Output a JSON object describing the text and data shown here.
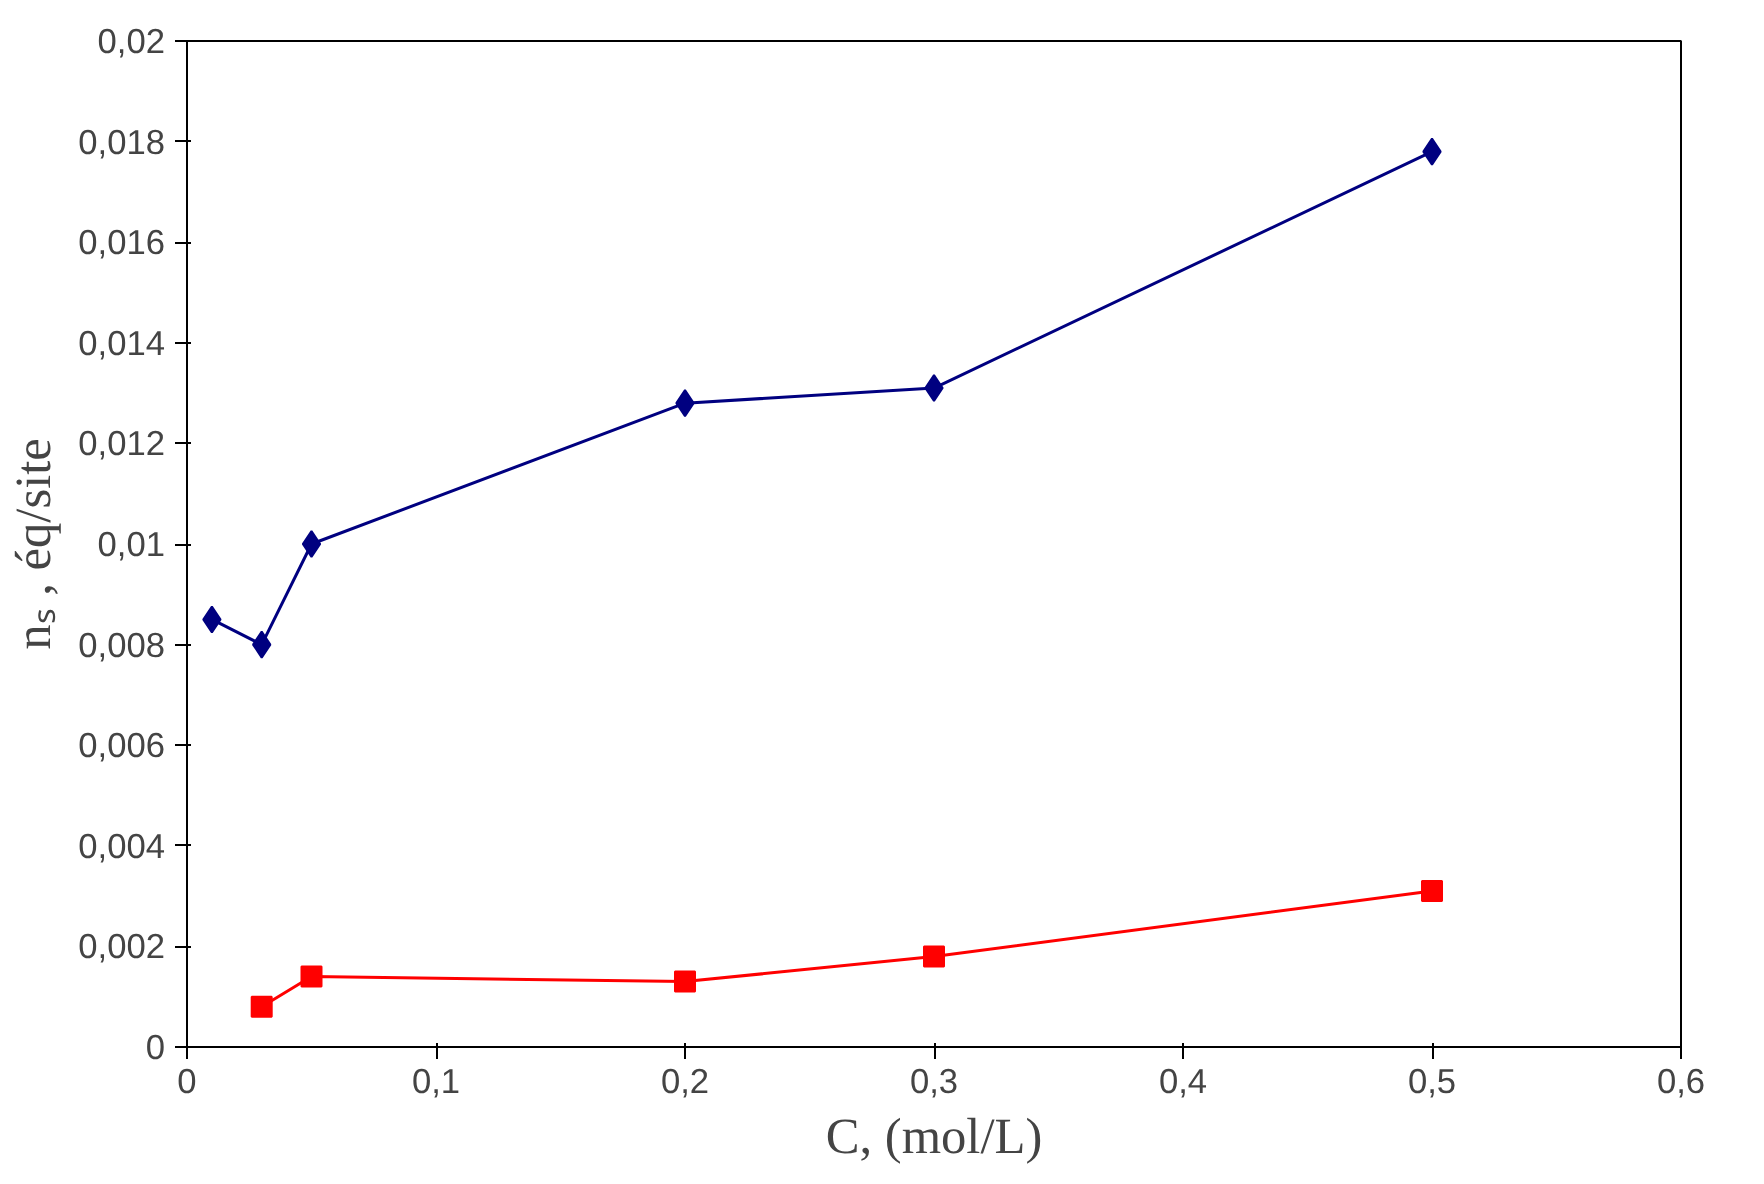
{
  "chart_data": {
    "type": "line",
    "xlabel": "C, (mol/L)",
    "ylabel": "nₛ , éq/site",
    "xlim": [
      0,
      0.6
    ],
    "ylim": [
      0,
      0.02
    ],
    "xticks": [
      0,
      {
        "value": 0.1,
        "label": "0,1"
      },
      {
        "value": 0.2,
        "label": "0,2"
      },
      {
        "value": 0.3,
        "label": "0,3"
      },
      {
        "value": 0.4,
        "label": "0,4"
      },
      {
        "value": 0.5,
        "label": "0,5"
      },
      {
        "value": 0.6,
        "label": "0,6"
      }
    ],
    "yticks": [
      0,
      {
        "value": 0.002,
        "label": "0,002"
      },
      {
        "value": 0.004,
        "label": "0,004"
      },
      {
        "value": 0.006,
        "label": "0,006"
      },
      {
        "value": 0.008,
        "label": "0,008"
      },
      {
        "value": 0.01,
        "label": "0,01"
      },
      {
        "value": 0.012,
        "label": "0,012"
      },
      {
        "value": 0.014,
        "label": "0,014"
      },
      {
        "value": 0.016,
        "label": "0,016"
      },
      {
        "value": 0.018,
        "label": "0,018"
      },
      {
        "value": 0.02,
        "label": "0,02"
      }
    ],
    "series": [
      {
        "color": "#000080",
        "marker": "diamond",
        "x": [
          0.01,
          0.03,
          0.05,
          0.2,
          0.3,
          0.5
        ],
        "values": [
          0.0085,
          0.008,
          0.01,
          0.0128,
          0.0131,
          0.0178
        ]
      },
      {
        "color": "#ff0000",
        "marker": "square",
        "x": [
          0.03,
          0.05,
          0.2,
          0.3,
          0.5
        ],
        "values": [
          0.0008,
          0.0014,
          0.0013,
          0.0018,
          0.0031
        ]
      }
    ]
  }
}
